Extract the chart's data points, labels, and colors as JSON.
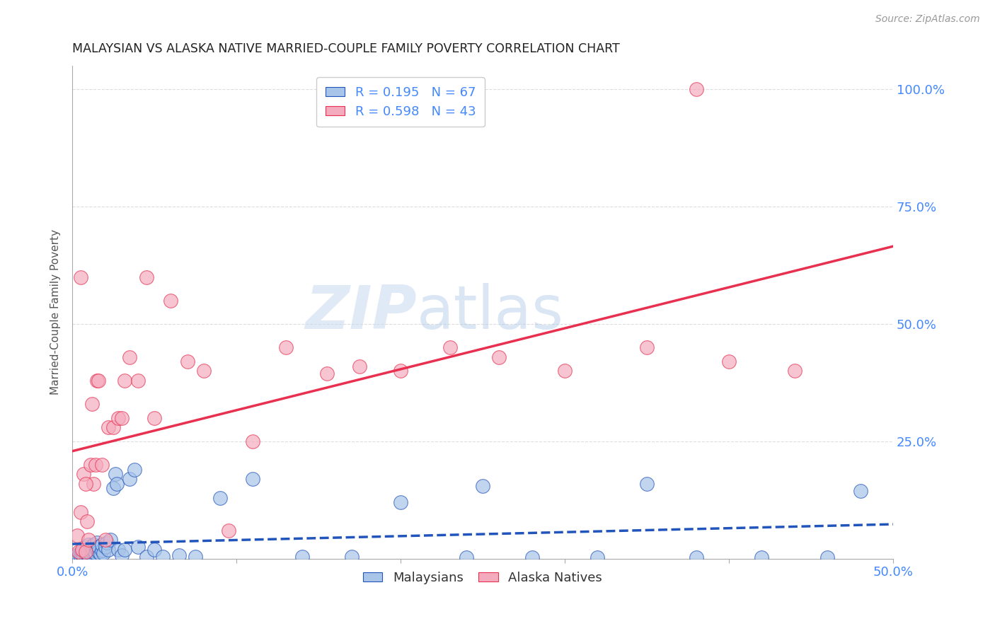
{
  "title": "MALAYSIAN VS ALASKA NATIVE MARRIED-COUPLE FAMILY POVERTY CORRELATION CHART",
  "source": "Source: ZipAtlas.com",
  "ylabel": "Married-Couple Family Poverty",
  "xlim": [
    0.0,
    0.5
  ],
  "ylim": [
    0.0,
    1.05
  ],
  "xticks": [
    0.0,
    0.1,
    0.2,
    0.3,
    0.4,
    0.5
  ],
  "xticklabels": [
    "0.0%",
    "",
    "",
    "",
    "",
    "50.0%"
  ],
  "yticks": [
    0.0,
    0.25,
    0.5,
    0.75,
    1.0
  ],
  "yticklabels": [
    "",
    "25.0%",
    "50.0%",
    "75.0%",
    "100.0%"
  ],
  "watermark_zip": "ZIP",
  "watermark_atlas": "atlas",
  "legend_labels": [
    "Malaysians",
    "Alaska Natives"
  ],
  "blue_R": "0.195",
  "blue_N": "67",
  "pink_R": "0.598",
  "pink_N": "43",
  "blue_color": "#a8c4e8",
  "pink_color": "#f5abbe",
  "blue_line_color": "#2255bb",
  "pink_line_color": "#e83050",
  "axis_label_color": "#4488ff",
  "title_color": "#222222",
  "grid_color": "#dddddd",
  "background_color": "#ffffff",
  "blue_x": [
    0.002,
    0.003,
    0.003,
    0.004,
    0.004,
    0.005,
    0.005,
    0.006,
    0.006,
    0.007,
    0.007,
    0.007,
    0.008,
    0.008,
    0.008,
    0.009,
    0.009,
    0.01,
    0.01,
    0.01,
    0.011,
    0.011,
    0.012,
    0.012,
    0.013,
    0.013,
    0.014,
    0.015,
    0.015,
    0.016,
    0.016,
    0.017,
    0.018,
    0.018,
    0.019,
    0.02,
    0.021,
    0.022,
    0.023,
    0.025,
    0.026,
    0.027,
    0.028,
    0.03,
    0.032,
    0.035,
    0.038,
    0.04,
    0.045,
    0.05,
    0.055,
    0.065,
    0.075,
    0.09,
    0.11,
    0.14,
    0.17,
    0.2,
    0.24,
    0.28,
    0.32,
    0.38,
    0.42,
    0.46,
    0.25,
    0.35,
    0.48
  ],
  "blue_y": [
    0.005,
    0.008,
    0.003,
    0.01,
    0.004,
    0.006,
    0.012,
    0.008,
    0.015,
    0.01,
    0.005,
    0.018,
    0.007,
    0.012,
    0.02,
    0.01,
    0.025,
    0.008,
    0.015,
    0.03,
    0.012,
    0.02,
    0.015,
    0.025,
    0.018,
    0.03,
    0.012,
    0.02,
    0.035,
    0.015,
    0.025,
    0.01,
    0.018,
    0.03,
    0.012,
    0.025,
    0.035,
    0.02,
    0.04,
    0.15,
    0.18,
    0.16,
    0.02,
    0.008,
    0.02,
    0.17,
    0.19,
    0.025,
    0.005,
    0.02,
    0.005,
    0.008,
    0.005,
    0.13,
    0.17,
    0.005,
    0.005,
    0.12,
    0.003,
    0.003,
    0.003,
    0.003,
    0.003,
    0.003,
    0.155,
    0.16,
    0.145
  ],
  "pink_x": [
    0.003,
    0.004,
    0.005,
    0.006,
    0.007,
    0.008,
    0.009,
    0.01,
    0.011,
    0.012,
    0.013,
    0.014,
    0.015,
    0.016,
    0.018,
    0.02,
    0.022,
    0.025,
    0.028,
    0.03,
    0.032,
    0.035,
    0.04,
    0.045,
    0.05,
    0.06,
    0.07,
    0.08,
    0.095,
    0.11,
    0.13,
    0.155,
    0.175,
    0.2,
    0.23,
    0.26,
    0.3,
    0.35,
    0.4,
    0.44,
    0.005,
    0.008,
    0.38
  ],
  "pink_y": [
    0.05,
    0.015,
    0.1,
    0.02,
    0.18,
    0.015,
    0.08,
    0.04,
    0.2,
    0.33,
    0.16,
    0.2,
    0.38,
    0.38,
    0.2,
    0.04,
    0.28,
    0.28,
    0.3,
    0.3,
    0.38,
    0.43,
    0.38,
    0.6,
    0.3,
    0.55,
    0.42,
    0.4,
    0.06,
    0.25,
    0.45,
    0.395,
    0.41,
    0.4,
    0.45,
    0.43,
    0.4,
    0.45,
    0.42,
    0.4,
    0.6,
    0.16,
    1.0
  ]
}
